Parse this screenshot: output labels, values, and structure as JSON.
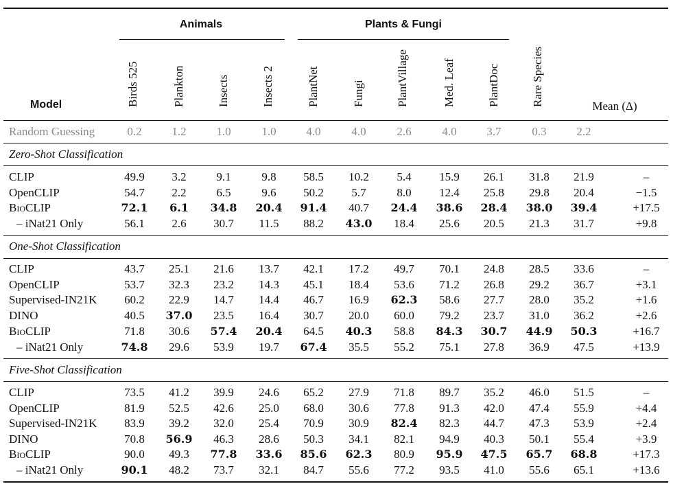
{
  "header": {
    "model": "Model",
    "groups": {
      "animals": "Animals",
      "plants": "Plants & Fungi"
    },
    "columns": [
      "Birds 525",
      "Plankton",
      "Insects",
      "Insects 2",
      "PlantNet",
      "Fungi",
      "PlantVillage",
      "Med. Leaf",
      "PlantDoc",
      "Rare Species"
    ],
    "mean": "Mean (Δ)"
  },
  "random": {
    "name": "Random Guessing",
    "values": [
      "0.2",
      "1.2",
      "1.0",
      "1.0",
      "4.0",
      "4.0",
      "2.6",
      "4.0",
      "3.7",
      "0.3",
      "2.2"
    ]
  },
  "sections": [
    {
      "title": "Zero-Shot Classification",
      "rows": [
        {
          "name": "CLIP",
          "values": [
            "49.9",
            "3.2",
            "9.1",
            "9.8",
            "58.5",
            "10.2",
            "5.4",
            "15.9",
            "26.1",
            "31.8",
            "21.9"
          ],
          "delta": "–",
          "bold": []
        },
        {
          "name": "OpenCLIP",
          "values": [
            "54.7",
            "2.2",
            "6.5",
            "9.6",
            "50.2",
            "5.7",
            "8.0",
            "12.4",
            "25.8",
            "29.8",
            "20.4"
          ],
          "delta": "−1.5",
          "bold": []
        },
        {
          "name": "BioCLIP",
          "values": [
            "72.1",
            "6.1",
            "34.8",
            "20.4",
            "91.4",
            "40.7",
            "24.4",
            "38.6",
            "28.4",
            "38.0",
            "39.4"
          ],
          "delta": "+17.5",
          "bold": [
            0,
            1,
            2,
            3,
            4,
            6,
            7,
            8,
            9,
            10
          ],
          "smallcaps": true
        },
        {
          "name": "– iNat21 Only",
          "values": [
            "56.1",
            "2.6",
            "30.7",
            "11.5",
            "88.2",
            "43.0",
            "18.4",
            "25.6",
            "20.5",
            "21.3",
            "31.7"
          ],
          "delta": "+9.8",
          "bold": [
            5
          ]
        }
      ]
    },
    {
      "title": "One-Shot Classification",
      "rows": [
        {
          "name": "CLIP",
          "values": [
            "43.7",
            "25.1",
            "21.6",
            "13.7",
            "42.1",
            "17.2",
            "49.7",
            "70.1",
            "24.8",
            "28.5",
            "33.6"
          ],
          "delta": "–",
          "bold": []
        },
        {
          "name": "OpenCLIP",
          "values": [
            "53.7",
            "32.3",
            "23.2",
            "14.3",
            "45.1",
            "18.4",
            "53.6",
            "71.2",
            "26.8",
            "29.2",
            "36.7"
          ],
          "delta": "+3.1",
          "bold": []
        },
        {
          "name": "Supervised-IN21K",
          "values": [
            "60.2",
            "22.9",
            "14.7",
            "14.4",
            "46.7",
            "16.9",
            "62.3",
            "58.6",
            "27.7",
            "28.0",
            "35.2"
          ],
          "delta": "+1.6",
          "bold": [
            6
          ]
        },
        {
          "name": "DINO",
          "values": [
            "40.5",
            "37.0",
            "23.5",
            "16.4",
            "30.7",
            "20.0",
            "60.0",
            "79.2",
            "23.7",
            "31.0",
            "36.2"
          ],
          "delta": "+2.6",
          "bold": [
            1
          ]
        },
        {
          "name": "BioCLIP",
          "values": [
            "71.8",
            "30.6",
            "57.4",
            "20.4",
            "64.5",
            "40.3",
            "58.8",
            "84.3",
            "30.7",
            "44.9",
            "50.3"
          ],
          "delta": "+16.7",
          "bold": [
            2,
            3,
            5,
            7,
            8,
            9,
            10
          ],
          "smallcaps": true
        },
        {
          "name": "– iNat21 Only",
          "values": [
            "74.8",
            "29.6",
            "53.9",
            "19.7",
            "67.4",
            "35.5",
            "55.2",
            "75.1",
            "27.8",
            "36.9",
            "47.5"
          ],
          "delta": "+13.9",
          "bold": [
            0,
            4
          ]
        }
      ]
    },
    {
      "title": "Five-Shot Classification",
      "rows": [
        {
          "name": "CLIP",
          "values": [
            "73.5",
            "41.2",
            "39.9",
            "24.6",
            "65.2",
            "27.9",
            "71.8",
            "89.7",
            "35.2",
            "46.0",
            "51.5"
          ],
          "delta": "–",
          "bold": []
        },
        {
          "name": "OpenCLIP",
          "values": [
            "81.9",
            "52.5",
            "42.6",
            "25.0",
            "68.0",
            "30.6",
            "77.8",
            "91.3",
            "42.0",
            "47.4",
            "55.9"
          ],
          "delta": "+4.4",
          "bold": []
        },
        {
          "name": "Supervised-IN21K",
          "values": [
            "83.9",
            "39.2",
            "32.0",
            "25.4",
            "70.9",
            "30.9",
            "82.4",
            "82.3",
            "44.7",
            "47.3",
            "53.9"
          ],
          "delta": "+2.4",
          "bold": [
            6
          ]
        },
        {
          "name": "DINO",
          "values": [
            "70.8",
            "56.9",
            "46.3",
            "28.6",
            "50.3",
            "34.1",
            "82.1",
            "94.9",
            "40.3",
            "50.1",
            "55.4"
          ],
          "delta": "+3.9",
          "bold": [
            1
          ]
        },
        {
          "name": "BioCLIP",
          "values": [
            "90.0",
            "49.3",
            "77.8",
            "33.6",
            "85.6",
            "62.3",
            "80.9",
            "95.9",
            "47.5",
            "65.7",
            "68.8"
          ],
          "delta": "+17.3",
          "bold": [
            2,
            3,
            4,
            5,
            7,
            8,
            9,
            10
          ],
          "smallcaps": true
        },
        {
          "name": "– iNat21 Only",
          "values": [
            "90.1",
            "48.2",
            "73.7",
            "32.1",
            "84.7",
            "55.6",
            "77.2",
            "93.5",
            "41.0",
            "55.6",
            "65.1"
          ],
          "delta": "+13.6",
          "bold": [
            0
          ]
        }
      ]
    }
  ]
}
